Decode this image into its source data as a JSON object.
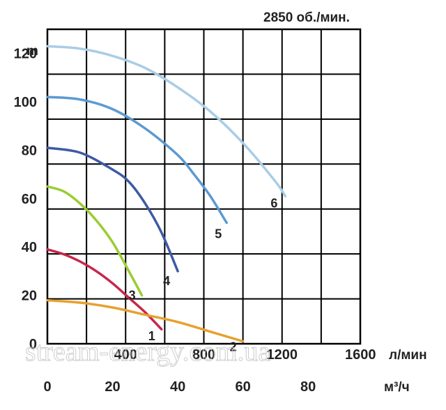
{
  "chart_data": {
    "type": "line",
    "title": "2850 об./мин.",
    "ylabel": "m",
    "x_unit_top": "л/мин",
    "x_unit_bottom": "м³/ч",
    "ylim": [
      0,
      130
    ],
    "xlim_lmin": [
      0,
      1600
    ],
    "xlim_m3h": [
      0,
      96
    ],
    "grid": true,
    "y_ticks": [
      "0",
      "20",
      "40",
      "60",
      "80",
      "100",
      "120"
    ],
    "x_ticks_top": [
      "400",
      "800",
      "1200",
      "1600"
    ],
    "x_ticks_bottom": [
      "0",
      "20",
      "40",
      "60",
      "80"
    ],
    "series": [
      {
        "name": "1",
        "color": "#c8264a",
        "x_m3h": [
          0,
          5,
          10,
          15,
          20,
          25,
          30,
          35
        ],
        "y_m": [
          39,
          37,
          34,
          30,
          25,
          19,
          13,
          6
        ]
      },
      {
        "name": "2",
        "color": "#e8a030",
        "x_m3h": [
          0,
          10,
          20,
          30,
          40,
          50,
          60
        ],
        "y_m": [
          18,
          17,
          15,
          12,
          9,
          5,
          1
        ]
      },
      {
        "name": "3",
        "color": "#9acd32",
        "x_m3h": [
          0,
          5,
          10,
          15,
          20,
          25,
          29
        ],
        "y_m": [
          65,
          63,
          58,
          51,
          42,
          30,
          20
        ]
      },
      {
        "name": "4",
        "color": "#3e5aa4",
        "x_m3h": [
          0,
          10,
          20,
          25,
          30,
          35,
          40
        ],
        "y_m": [
          81,
          79,
          72,
          67,
          58,
          46,
          30
        ]
      },
      {
        "name": "5",
        "color": "#5b9ad2",
        "x_m3h": [
          0,
          10,
          20,
          30,
          40,
          45,
          50,
          55
        ],
        "y_m": [
          102,
          101,
          97,
          89,
          78,
          70,
          61,
          50
        ]
      },
      {
        "name": "6",
        "color": "#a9cde6",
        "x_m3h": [
          0,
          10,
          20,
          30,
          40,
          50,
          60,
          70,
          73
        ],
        "y_m": [
          123,
          122,
          119,
          114,
          106,
          96,
          83,
          67,
          61
        ]
      }
    ]
  },
  "watermark": "stream-energy.com.ua"
}
